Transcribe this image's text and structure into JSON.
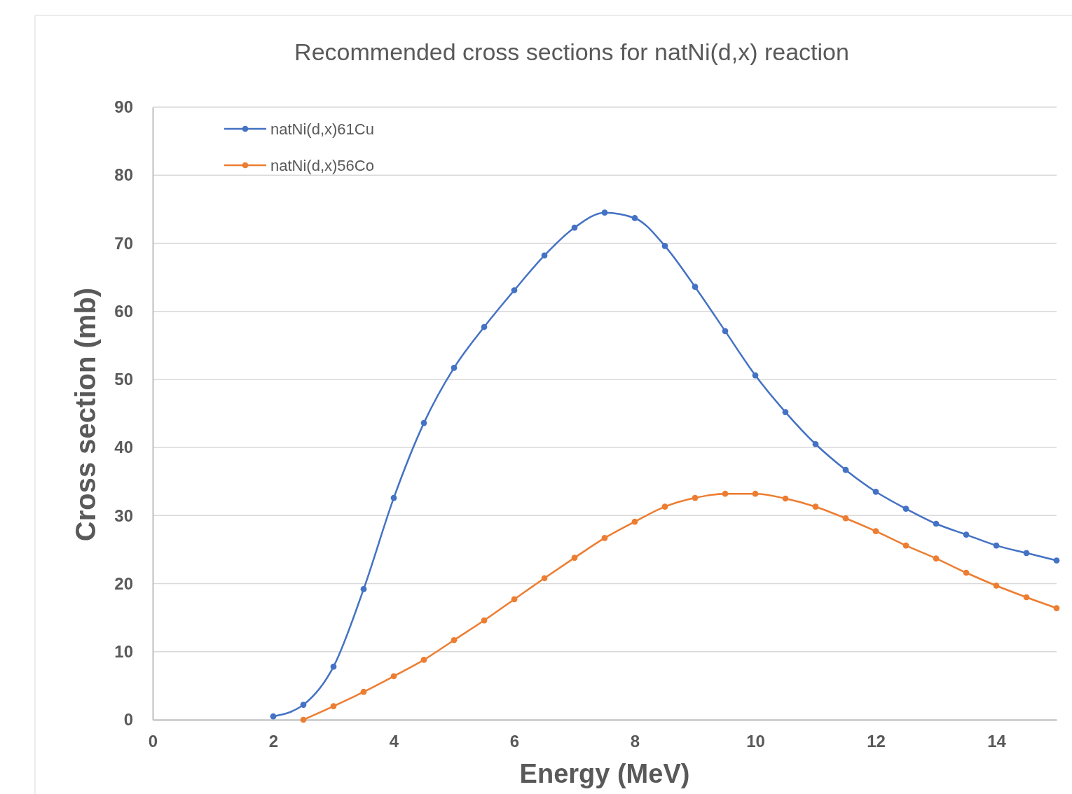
{
  "chart_data": {
    "type": "line",
    "title": "Recommended cross sections for natNi(d,x) reaction",
    "xlabel": "Energy (MeV)",
    "ylabel": "Cross section (mb)",
    "xlim": [
      0,
      15
    ],
    "xticks": [
      0,
      2,
      4,
      6,
      8,
      10,
      12,
      14
    ],
    "ylim": [
      0,
      90
    ],
    "yticks": [
      0,
      10,
      20,
      30,
      40,
      50,
      60,
      70,
      80,
      90
    ],
    "grid": "y",
    "legend": "top left",
    "marker": "circle",
    "line_style": "solid",
    "series": [
      {
        "name": "natNi(d,x)61Cu",
        "color": "#4472c4",
        "x": [
          2,
          2.5,
          3,
          3.5,
          4,
          4.5,
          5,
          5.5,
          6,
          6.5,
          7,
          7.5,
          8,
          8.5,
          9,
          9.5,
          10,
          10.5,
          11,
          11.5,
          12,
          12.5,
          13,
          13.5,
          14,
          14.5,
          15
        ],
        "values": [
          0.5,
          2.2,
          7.8,
          19.2,
          32.6,
          43.6,
          51.7,
          57.7,
          63.1,
          68.2,
          72.3,
          74.5,
          73.7,
          69.6,
          63.6,
          57.1,
          50.6,
          45.2,
          40.5,
          36.7,
          33.5,
          31.0,
          28.8,
          27.2,
          25.6,
          24.5,
          23.4
        ]
      },
      {
        "name": "natNi(d,x)56Co",
        "color": "#ed7d31",
        "x": [
          2.5,
          3,
          3.5,
          4,
          4.5,
          5,
          5.5,
          6,
          6.5,
          7,
          7.5,
          8,
          8.5,
          9,
          9.5,
          10,
          10.5,
          11,
          11.5,
          12,
          12.5,
          13,
          13.5,
          14,
          14.5,
          15
        ],
        "values": [
          0,
          2.0,
          4.1,
          6.4,
          8.8,
          11.7,
          14.6,
          17.7,
          20.8,
          23.8,
          26.7,
          29.1,
          31.3,
          32.6,
          33.2,
          33.2,
          32.5,
          31.3,
          29.6,
          27.7,
          25.6,
          23.7,
          21.6,
          19.7,
          18.0,
          16.4
        ]
      }
    ]
  }
}
